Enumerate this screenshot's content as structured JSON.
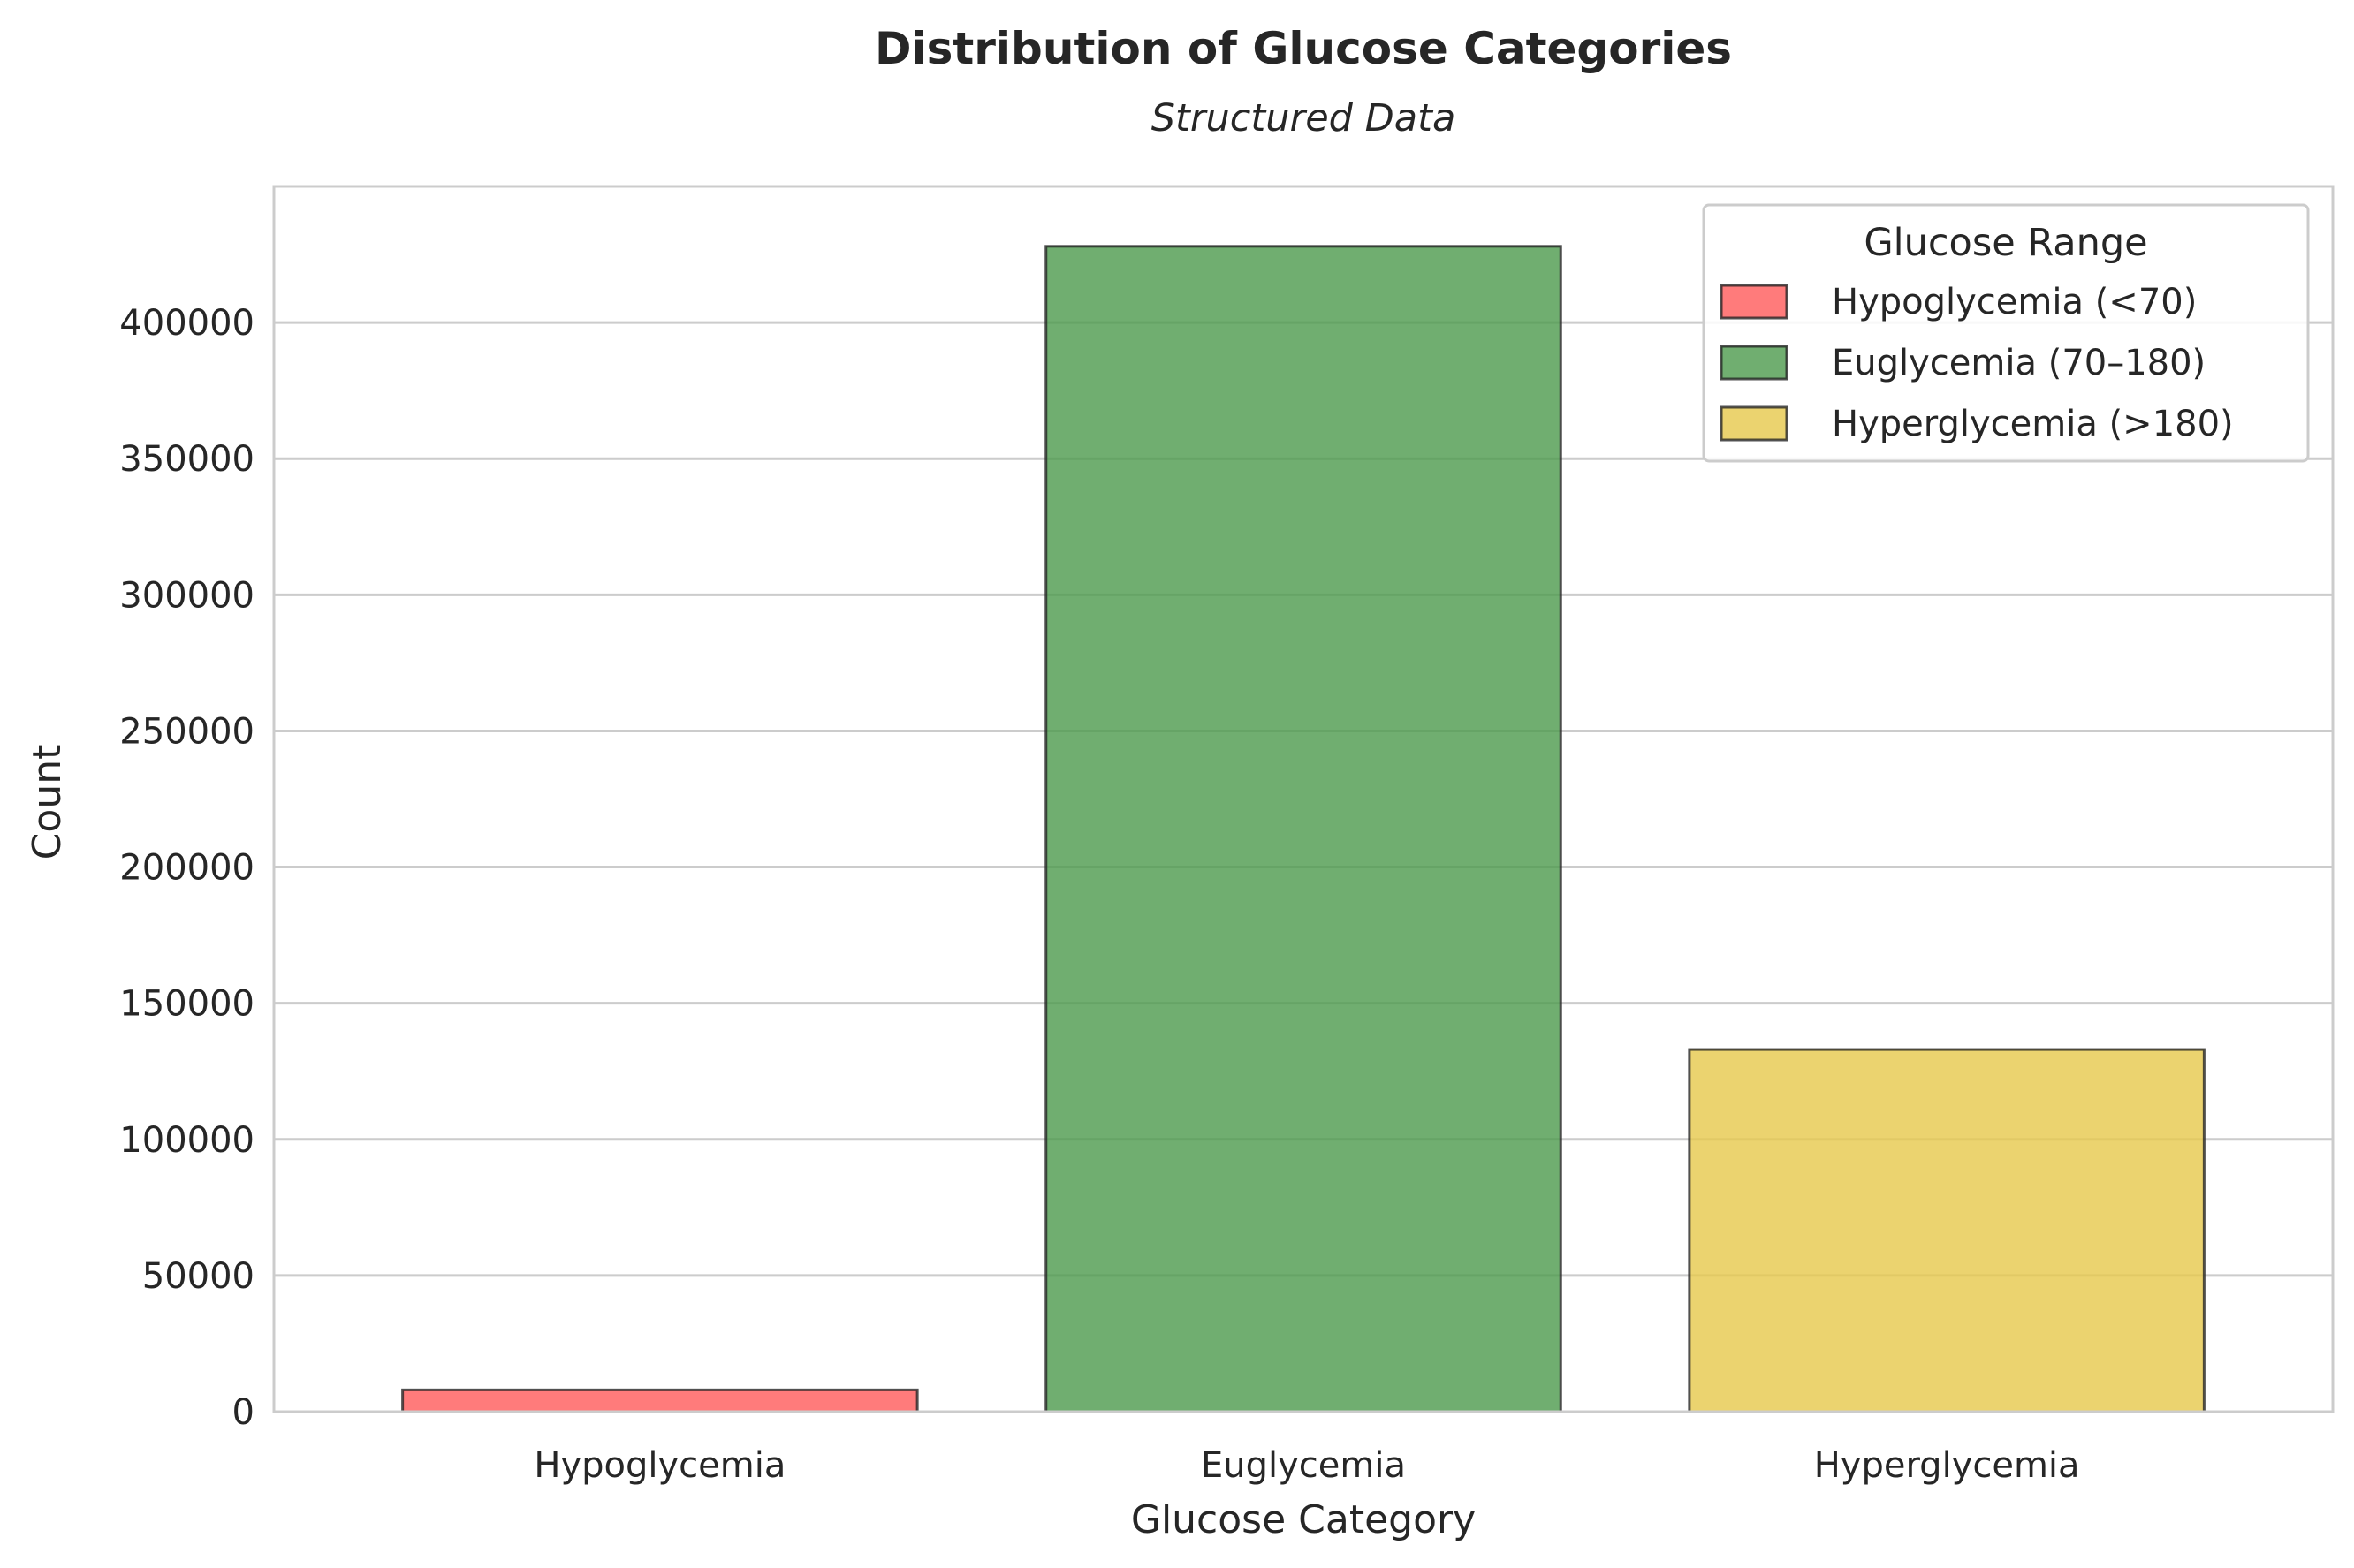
{
  "chart_data": {
    "type": "bar",
    "title": "Distribution of Glucose Categories",
    "subtitle": "Structured Data",
    "xlabel": "Glucose Category",
    "ylabel": "Count",
    "categories": [
      "Hypoglycemia",
      "Euglycemia",
      "Hyperglycemia"
    ],
    "values": [
      8000,
      428000,
      133000
    ],
    "colors": [
      "#ff5a5a",
      "#4c9a4c",
      "#e6c84b"
    ],
    "ylim": [
      0,
      450000
    ],
    "yticks": [
      0,
      50000,
      100000,
      150000,
      200000,
      250000,
      300000,
      350000,
      400000
    ],
    "ytick_labels": [
      "0",
      "50000",
      "100000",
      "150000",
      "200000",
      "250000",
      "300000",
      "350000",
      "400000"
    ],
    "grid": "horizontal",
    "legend": {
      "title": "Glucose Range",
      "placement": "top-right",
      "entries": [
        {
          "label": "Hypoglycemia (<70)",
          "color": "#ff5a5a"
        },
        {
          "label": "Euglycemia (70–180)",
          "color": "#4c9a4c"
        },
        {
          "label": "Hyperglycemia (>180)",
          "color": "#e6c84b"
        }
      ]
    }
  }
}
